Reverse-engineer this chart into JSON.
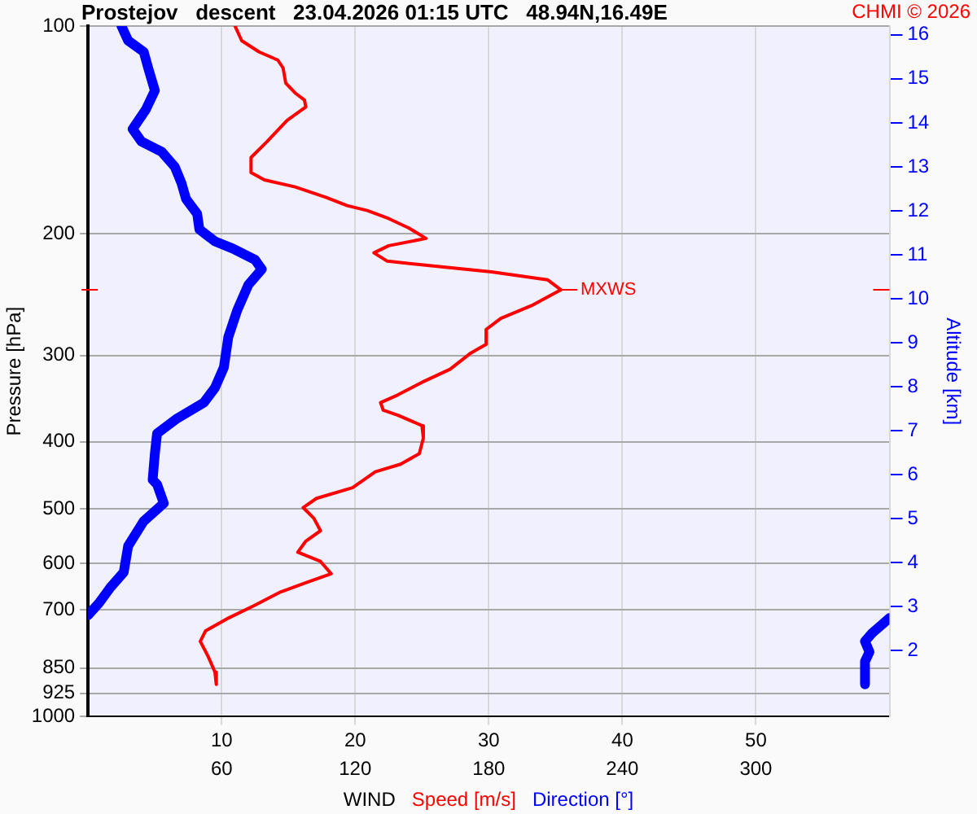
{
  "chart_data": {
    "type": "line",
    "title": "Prostejov   descent   23.04.2026 01:15 UTC   48.94N,16.49E",
    "xlabel": "WIND",
    "ylabel": "Pressure [hPa]",
    "y2label": "Altitude [km]",
    "annotations": [
      {
        "text": "MXWS",
        "x": 35.4,
        "y": 241
      },
      "CHMI © 2026"
    ],
    "log": "y",
    "ylim": [
      1000,
      100
    ],
    "yticks": [
      100,
      200,
      300,
      400,
      500,
      600,
      700,
      850,
      925,
      1000
    ],
    "xlim": [
      0,
      60
    ],
    "xticks": [
      10,
      20,
      30,
      40,
      50
    ],
    "x2lim": [
      0,
      360
    ],
    "x2ticks": [
      60,
      120,
      180,
      240,
      300
    ],
    "y2lim": [
      0.5,
      16.2
    ],
    "y2ticks": [
      2,
      3,
      4,
      5,
      6,
      7,
      8,
      9,
      10,
      11,
      12,
      13,
      14,
      15,
      16
    ],
    "grid": true,
    "marker": "none",
    "series": [
      {
        "name": "Speed [m/s]",
        "color": "#ff0000",
        "x": [
          11.0,
          11.5,
          12.8,
          14.2,
          14.6,
          14.8,
          15.5,
          16.2,
          16.3,
          14.9,
          13.4,
          12.2,
          12.2,
          13.2,
          15.5,
          17.8,
          19.4,
          20.9,
          22.5,
          24.0,
          25.3,
          22.5,
          21.4,
          22.4,
          26.3,
          30.2,
          34.4,
          35.4,
          33.2,
          30.9,
          29.8,
          29.8,
          28.6,
          27.1,
          25.0,
          23.2,
          21.9,
          22.1,
          23.2,
          25.0,
          25.1,
          24.8,
          23.4,
          21.5,
          19.8,
          17.1,
          16.1,
          16.9,
          17.4,
          16.3,
          15.7,
          17.4,
          18.2,
          16.3,
          14.4,
          12.4,
          10.5,
          8.8,
          8.4,
          9.0,
          9.5,
          9.6
        ],
        "values": [
          100,
          105,
          109,
          112,
          115,
          121,
          125,
          128,
          131,
          137,
          147,
          155,
          163,
          167,
          171,
          177,
          182,
          185,
          190,
          196,
          203,
          208,
          213,
          219,
          223,
          227,
          233,
          241,
          254,
          265,
          275,
          289,
          298,
          314,
          328,
          342,
          351,
          360,
          366,
          379,
          395,
          416,
          431,
          442,
          466,
          483,
          498,
          516,
          538,
          557,
          578,
          596,
          621,
          640,
          660,
          691,
          720,
          751,
          778,
          819,
          862,
          898
        ]
      },
      {
        "name": "Direction [°]",
        "color": "#0000ff",
        "axis": "x2",
        "x": [
          15,
          18,
          25,
          27,
          30,
          26,
          20,
          24,
          33,
          39,
          42,
          44,
          49,
          50,
          57,
          65,
          75,
          78,
          72,
          67,
          63,
          61,
          57,
          52,
          40,
          31,
          30,
          29,
          31,
          34,
          25,
          18,
          16,
          10,
          5,
          0,
          null,
          360,
          352,
          349,
          351,
          349,
          349
        ],
        "values": [
          100,
          105,
          109,
          115,
          124,
          132,
          141,
          147,
          152,
          160,
          169,
          178,
          187,
          197,
          205,
          210,
          218,
          225,
          237,
          258,
          282,
          312,
          334,
          351,
          370,
          389,
          416,
          454,
          461,
          491,
          521,
          566,
          618,
          650,
          684,
          713,
          null,
          720,
          758,
          778,
          806,
          832,
          898
        ]
      }
    ]
  }
}
